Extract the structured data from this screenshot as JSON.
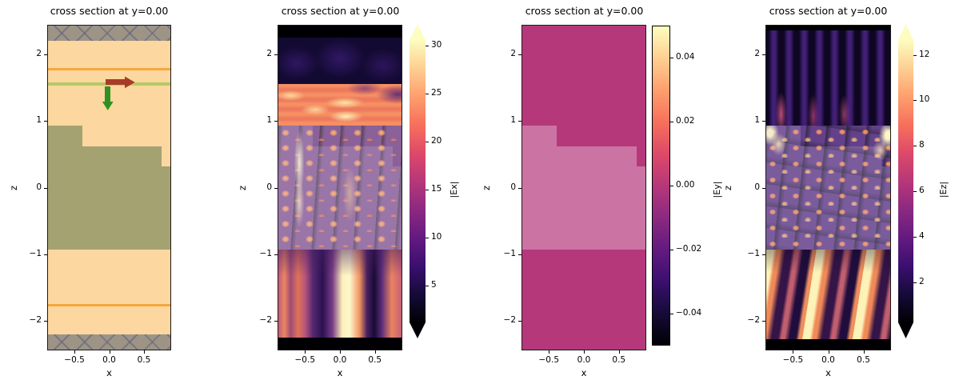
{
  "figure": {
    "kind": "matplotlib-simulation-cross-sections",
    "background": "#ffffff"
  },
  "chart_data": [
    {
      "type": "structure",
      "title": "cross section at y=0.00",
      "xlabel": "x",
      "ylabel": "z",
      "xlim": [
        -0.88,
        0.88
      ],
      "zlim": [
        -2.43,
        2.43
      ],
      "xticks": {
        "values": [
          -0.5,
          0.0,
          0.5
        ],
        "labels": [
          "−0.5",
          "0.0",
          "0.5"
        ]
      },
      "yticks": {
        "values": [
          2,
          1,
          0,
          -1,
          -2
        ],
        "labels": [
          "2",
          "1",
          "0",
          "−1",
          "−2"
        ]
      },
      "colors": {
        "background": "#fcd79f",
        "structure": "#a5a272",
        "pml": "#9d9486",
        "source_line": "#f5a73c",
        "monitor_line": "#b5ca68",
        "arrow_red": "#a83b28",
        "arrow_green": "#2e9222"
      },
      "pml_bands": [
        {
          "z0": 2.43,
          "z1": 2.2,
          "desc": "top PML (hatched)"
        },
        {
          "z0": -2.2,
          "z1": -2.43,
          "desc": "bottom PML (hatched)"
        }
      ],
      "lines": [
        {
          "z": 1.78,
          "kind": "source_line",
          "desc": "orange plane at z=1.78"
        },
        {
          "z": -1.76,
          "kind": "source_line",
          "desc": "orange plane at z=-1.76"
        },
        {
          "z": 1.55,
          "kind": "monitor_line",
          "desc": "green plane at z=1.55"
        }
      ],
      "structure_rects": [
        {
          "x0": -0.88,
          "x1": -0.39,
          "z0": 0.93,
          "z1": -0.93
        },
        {
          "x0": -0.39,
          "x1": 0.75,
          "z0": 0.62,
          "z1": -0.93
        },
        {
          "x0": 0.75,
          "x1": 0.88,
          "z0": 0.32,
          "z1": -0.93
        }
      ],
      "arrows": [
        {
          "dir": "right",
          "x": -0.05,
          "z": 1.58,
          "len": 0.42,
          "kind": "arrow_red",
          "desc": "source polarization arrow"
        },
        {
          "dir": "down",
          "x": -0.02,
          "z": 1.52,
          "len": 0.36,
          "kind": "arrow_green",
          "desc": "source injection arrow"
        }
      ]
    },
    {
      "type": "heatmap",
      "field": "|Ex|",
      "title": "cross section at y=0.00",
      "xlabel": "x",
      "ylabel": "z",
      "xlim": [
        -0.88,
        0.88
      ],
      "zlim": [
        -2.43,
        2.43
      ],
      "xticks": {
        "values": [
          -0.5,
          0.0,
          0.5
        ],
        "labels": [
          "−0.5",
          "0.0",
          "0.5"
        ]
      },
      "yticks": {
        "values": [
          2,
          1,
          0,
          -1,
          -2
        ],
        "labels": [
          "2",
          "1",
          "0",
          "−1",
          "−2"
        ]
      },
      "colorbar": {
        "label": "|Ex|",
        "vmin": 1.2,
        "vmax": 30.6,
        "extend": "both",
        "colormap": "magma",
        "ticks": {
          "values": [
            30,
            25,
            20,
            15,
            10,
            5
          ],
          "labels": [
            "30",
            "25",
            "20",
            "15",
            "10",
            "5"
          ]
        }
      },
      "bands": [
        {
          "z0": 2.43,
          "z1": 2.25,
          "style": "black",
          "desc": "near-zero field at top edge"
        },
        {
          "z0": 2.25,
          "z1": 1.55,
          "style": "p2-top",
          "desc": "weak field above source"
        },
        {
          "z0": 1.55,
          "z1": 0.93,
          "style": "p2-waves",
          "desc": "horizontal standing-wave fringes ~20-30"
        },
        {
          "z0": 0.93,
          "z1": -0.93,
          "style": "p2-mid",
          "desc": "hot-spot columns inside structure"
        },
        {
          "z0": -0.93,
          "z1": -2.25,
          "style": "p2-bot",
          "desc": "bright transmitted beam near x=0.25"
        },
        {
          "z0": -2.25,
          "z1": -2.43,
          "style": "black",
          "desc": "near-zero field at bottom edge"
        }
      ],
      "overlays": [
        {
          "x0": -0.88,
          "x1": -0.39,
          "z0": 0.93,
          "z1": -0.93,
          "style": "ov-soft"
        },
        {
          "x0": -0.39,
          "x1": 0.75,
          "z0": 0.62,
          "z1": -0.93,
          "style": "ov-soft"
        },
        {
          "x0": 0.75,
          "x1": 0.88,
          "z0": 0.32,
          "z1": -0.93,
          "style": "ov-soft"
        }
      ]
    },
    {
      "type": "heatmap",
      "field": "|Ey|",
      "title": "cross section at y=0.00",
      "xlabel": "x",
      "ylabel": "z",
      "xlim": [
        -0.88,
        0.88
      ],
      "zlim": [
        -2.43,
        2.43
      ],
      "xticks": {
        "values": [
          -0.5,
          0.0,
          0.5
        ],
        "labels": [
          "−0.5",
          "0.0",
          "0.5"
        ]
      },
      "yticks": {
        "values": [
          2,
          1,
          0,
          -1,
          -2
        ],
        "labels": [
          "2",
          "1",
          "0",
          "−1",
          "−2"
        ]
      },
      "colorbar": {
        "label": "|Ey|",
        "vmin": -0.05,
        "vmax": 0.05,
        "extend": "none",
        "colormap": "magma",
        "ticks": {
          "values": [
            0.04,
            0.02,
            0.0,
            -0.02,
            -0.04
          ],
          "labels": [
            "0.04",
            "0.02",
            "0.00",
            "−0.02",
            "−0.04"
          ]
        }
      },
      "bands": [
        {
          "z0": 2.43,
          "z1": -2.43,
          "style": "p3-flat",
          "color": "#b5387b",
          "desc": "|Ey| ≈ 0 everywhere (mid colormap)"
        }
      ],
      "overlays": [
        {
          "x0": -0.88,
          "x1": -0.39,
          "z0": 0.93,
          "z1": -0.93,
          "style": "ov-light"
        },
        {
          "x0": -0.39,
          "x1": 0.75,
          "z0": 0.62,
          "z1": -0.93,
          "style": "ov-light"
        },
        {
          "x0": 0.75,
          "x1": 0.88,
          "z0": 0.32,
          "z1": -0.93,
          "style": "ov-light"
        }
      ]
    },
    {
      "type": "heatmap",
      "field": "|Ez|",
      "title": "cross section at y=0.00",
      "xlabel": "x",
      "ylabel": "z",
      "xlim": [
        -0.88,
        0.88
      ],
      "zlim": [
        -2.43,
        2.43
      ],
      "xticks": {
        "values": [
          -0.5,
          0.0,
          0.5
        ],
        "labels": [
          "−0.5",
          "0.0",
          "0.5"
        ]
      },
      "yticks": {
        "values": [
          2,
          1,
          0,
          -1,
          -2
        ],
        "labels": [
          "2",
          "1",
          "0",
          "−1",
          "−2"
        ]
      },
      "colorbar": {
        "label": "|Ez|",
        "vmin": 0.25,
        "vmax": 12.65,
        "extend": "both",
        "colormap": "magma",
        "ticks": {
          "values": [
            12,
            10,
            8,
            6,
            4,
            2
          ],
          "labels": [
            "12",
            "10",
            "8",
            "6",
            "4",
            "2"
          ]
        }
      },
      "bands": [
        {
          "z0": 2.43,
          "z1": 2.36,
          "style": "black",
          "desc": "top edge"
        },
        {
          "z0": 2.36,
          "z1": 0.93,
          "style": "p4-top",
          "desc": "vertical purple streaks above structure"
        },
        {
          "z0": 0.93,
          "z1": -0.93,
          "style": "p4-mid",
          "desc": "speckled hot spots inside structure, bright corners"
        },
        {
          "z0": -0.93,
          "z1": -2.27,
          "style": "p4-bot",
          "desc": "bright scattered streaks below structure"
        },
        {
          "z0": -2.27,
          "z1": -2.43,
          "style": "black",
          "desc": "bottom edge"
        }
      ],
      "overlays": [
        {
          "x0": -0.88,
          "x1": -0.39,
          "z0": 0.93,
          "z1": -0.93,
          "style": "ov-soft"
        },
        {
          "x0": -0.39,
          "x1": 0.75,
          "z0": 0.62,
          "z1": -0.93,
          "style": "ov-soft"
        },
        {
          "x0": 0.75,
          "x1": 0.88,
          "z0": 0.32,
          "z1": -0.93,
          "style": "ov-soft"
        }
      ]
    }
  ],
  "colormap_magma_anchors": [
    "#000004",
    "#160b39",
    "#3b0f70",
    "#641a80",
    "#8c2981",
    "#b73779",
    "#de4968",
    "#f7705c",
    "#fe9f6d",
    "#fecf92",
    "#fcfdbf"
  ]
}
